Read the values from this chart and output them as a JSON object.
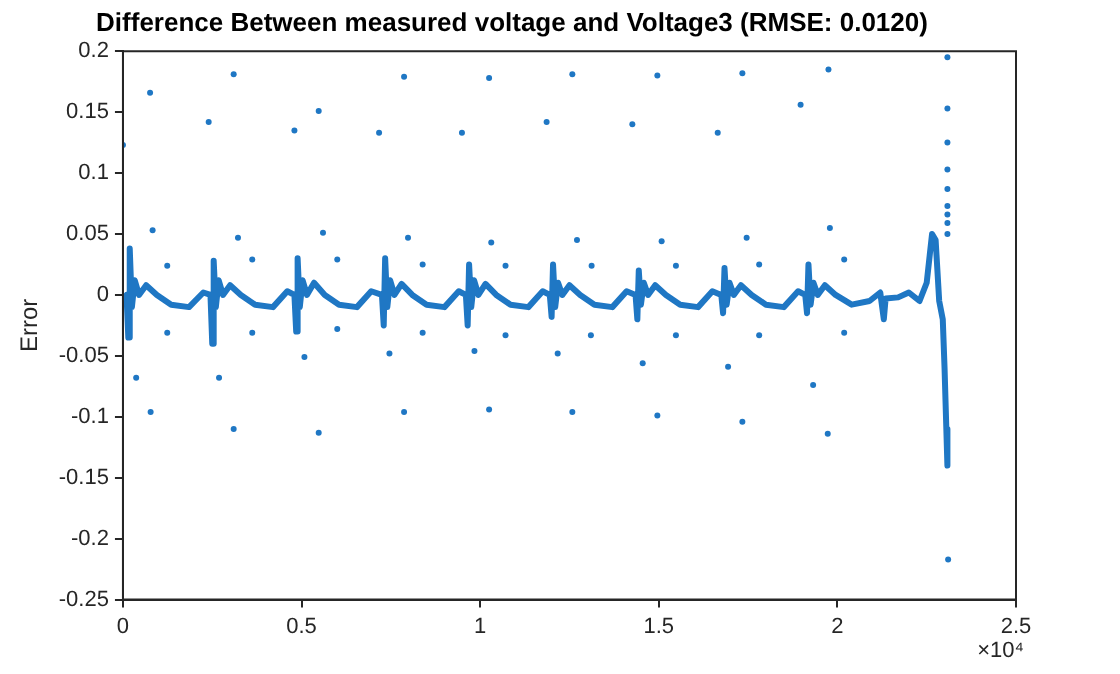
{
  "chart_data": {
    "type": "scatter",
    "title": "Difference Between measured voltage and Voltage3 (RMSE: 0.0120)",
    "ylabel": "Error",
    "annotations": [
      "×10⁴"
    ],
    "xlim": [
      0,
      2.5
    ],
    "xticks": [
      0,
      0.5,
      1,
      1.5,
      2,
      2.5
    ],
    "ylim": [
      -0.25,
      0.2
    ],
    "yticks": [
      -0.25,
      -0.2,
      -0.15,
      -0.1,
      -0.05,
      0,
      0.05,
      0.1,
      0.15,
      0.2
    ],
    "grid": false,
    "legend": false,
    "series": [
      {
        "type": "line",
        "color": "#1f77c4",
        "marker": "none",
        "x": [
          0,
          0.01,
          0.015,
          0.019,
          0.025,
          0.033,
          0.045,
          0.065,
          0.095,
          0.135,
          0.185,
          0.225,
          0.245,
          0.25,
          0.254,
          0.26,
          0.268,
          0.28,
          0.3,
          0.33,
          0.37,
          0.42,
          0.46,
          0.48,
          0.485,
          0.489,
          0.495,
          0.503,
          0.515,
          0.535,
          0.565,
          0.605,
          0.655,
          0.695,
          0.725,
          0.73,
          0.734,
          0.74,
          0.748,
          0.76,
          0.78,
          0.81,
          0.85,
          0.9,
          0.94,
          0.96,
          0.965,
          0.969,
          0.975,
          0.983,
          0.995,
          1.015,
          1.045,
          1.085,
          1.135,
          1.175,
          1.195,
          1.2,
          1.204,
          1.21,
          1.218,
          1.23,
          1.25,
          1.28,
          1.32,
          1.37,
          1.41,
          1.435,
          1.44,
          1.444,
          1.45,
          1.458,
          1.47,
          1.49,
          1.52,
          1.56,
          1.61,
          1.65,
          1.675,
          1.68,
          1.684,
          1.69,
          1.698,
          1.71,
          1.73,
          1.76,
          1.8,
          1.85,
          1.89,
          1.91,
          1.915,
          1.919,
          1.925,
          1.933,
          1.945,
          1.965,
          1.995,
          2.04,
          2.09,
          2.12,
          2.13,
          2.135,
          2.17,
          2.2,
          2.23,
          2.25,
          2.265,
          2.275,
          2.285,
          2.295,
          2.3,
          2.305,
          2.308
        ],
        "values": [
          -0.005,
          0,
          -0.035,
          0.038,
          -0.01,
          0.012,
          0,
          0.008,
          0,
          -0.008,
          -0.01,
          0.002,
          0,
          -0.04,
          0.028,
          -0.01,
          0.012,
          0,
          0.008,
          0,
          -0.008,
          -0.01,
          0.003,
          0,
          -0.03,
          0.03,
          -0.01,
          0.012,
          0,
          0.01,
          0,
          -0.008,
          -0.01,
          0.003,
          0,
          -0.025,
          0.03,
          -0.01,
          0.012,
          0,
          0.009,
          0,
          -0.008,
          -0.01,
          0.003,
          0,
          -0.025,
          0.025,
          -0.01,
          0.012,
          0,
          0.009,
          0,
          -0.008,
          -0.01,
          0.003,
          0,
          -0.018,
          0.025,
          -0.01,
          0.01,
          0,
          0.008,
          0,
          -0.008,
          -0.01,
          0.003,
          0,
          -0.02,
          0.02,
          -0.008,
          0.01,
          0,
          0.008,
          0,
          -0.008,
          -0.01,
          0.003,
          0,
          -0.015,
          0.022,
          -0.008,
          0.01,
          0,
          0.008,
          0,
          -0.008,
          -0.01,
          0.003,
          0,
          -0.015,
          0.025,
          -0.008,
          0.01,
          0,
          0.008,
          0,
          -0.008,
          -0.005,
          0.002,
          -0.02,
          -0.003,
          -0.002,
          0.002,
          -0.005,
          0.01,
          0.05,
          0.045,
          -0.005,
          -0.02,
          -0.06,
          -0.11,
          -0.14
        ]
      },
      {
        "type": "scatter",
        "color": "#1f77c4",
        "marker": "circle",
        "x": [
          0,
          0.076,
          0.31,
          0.24,
          0.48,
          0.548,
          0.787,
          0.717,
          1.025,
          0.949,
          1.186,
          1.258,
          1.496,
          1.426,
          1.734,
          1.665,
          1.975,
          1.897,
          2.308,
          2.308,
          2.308,
          2.308,
          2.308,
          2.308,
          2.308,
          2.308,
          2.308,
          0.083,
          0.124,
          0.322,
          0.362,
          0.56,
          0.6,
          0.798,
          0.839,
          1.031,
          1.071,
          1.271,
          1.312,
          1.508,
          1.548,
          1.746,
          1.781,
          1.979,
          2.019,
          0.124,
          0.037,
          0.0775,
          0.269,
          0.31,
          0.362,
          0.508,
          0.548,
          0.6,
          0.746,
          0.787,
          0.839,
          0.984,
          1.025,
          1.071,
          1.217,
          1.258,
          1.31,
          1.455,
          1.496,
          1.548,
          1.694,
          1.734,
          1.781,
          1.932,
          1.973,
          2.019,
          2.31
        ],
        "values": [
          0.123,
          0.166,
          0.181,
          0.142,
          0.135,
          0.151,
          0.179,
          0.133,
          0.178,
          0.133,
          0.142,
          0.181,
          0.18,
          0.14,
          0.182,
          0.133,
          0.185,
          0.156,
          0.195,
          0.153,
          0.125,
          0.103,
          0.087,
          0.073,
          0.066,
          0.059,
          0.05,
          0.053,
          0.024,
          0.047,
          0.029,
          0.051,
          0.029,
          0.047,
          0.025,
          0.043,
          0.024,
          0.045,
          0.024,
          0.044,
          0.024,
          0.047,
          0.025,
          0.055,
          0.029,
          -0.031,
          -0.068,
          -0.096,
          -0.068,
          -0.11,
          -0.031,
          -0.051,
          -0.113,
          -0.028,
          -0.048,
          -0.096,
          -0.031,
          -0.046,
          -0.094,
          -0.033,
          -0.048,
          -0.096,
          -0.033,
          -0.056,
          -0.099,
          -0.033,
          -0.059,
          -0.104,
          -0.033,
          -0.074,
          -0.114,
          -0.031,
          -0.217
        ]
      }
    ]
  }
}
